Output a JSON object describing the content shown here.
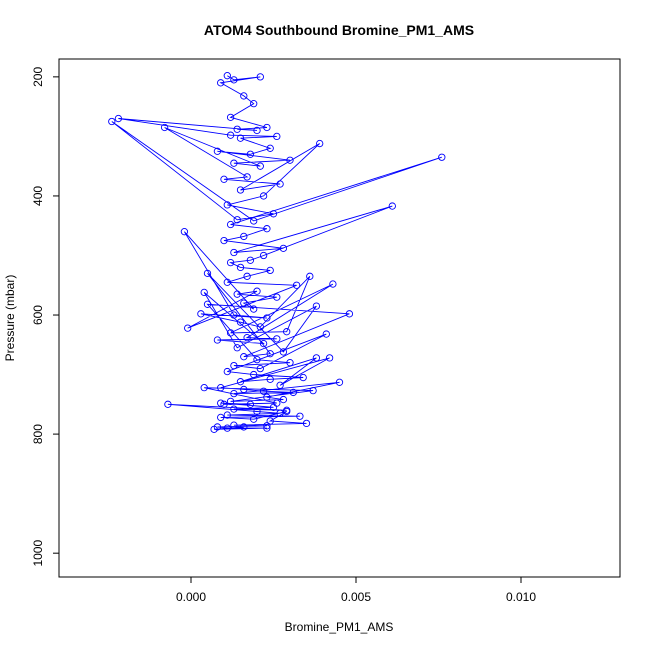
{
  "chart_data": {
    "type": "line",
    "title": "ATOM4 Southbound Bromine_PM1_AMS",
    "xlabel": "Bromine_PM1_AMS",
    "ylabel": "Pressure (mbar)",
    "xlim": [
      -0.004,
      0.013
    ],
    "ylim": [
      1040,
      170
    ],
    "y_reversed": true,
    "x_ticks": [
      "0.000",
      "0.005",
      "0.010"
    ],
    "x_tick_values": [
      0.0,
      0.005,
      0.01
    ],
    "y_ticks": [
      "200",
      "400",
      "600",
      "800",
      "1000"
    ],
    "y_tick_values": [
      200,
      400,
      600,
      800,
      1000
    ],
    "grid": false,
    "legend": "none",
    "series_color": "#0000ff",
    "marker": "open-circle",
    "series": [
      {
        "x": [
          0.0011,
          0.0013,
          0.0021,
          0.0009,
          0.0016,
          0.0019,
          0.0012,
          0.0023,
          0.0014,
          0.002,
          -0.0022,
          0.0012,
          0.0026,
          0.0015,
          0.0024,
          0.0018,
          0.0008,
          0.003,
          0.0013,
          0.0021,
          -0.0008,
          0.0017,
          0.001,
          0.0027,
          0.0015,
          0.0039,
          0.0022,
          0.0011,
          0.0025,
          0.0014,
          -0.0024,
          0.0019,
          0.0076,
          0.0012,
          0.0023,
          0.0016,
          0.001,
          0.0028,
          0.0013,
          0.0061,
          0.0022,
          0.0018,
          0.0012,
          0.0015,
          0.0024,
          0.0017,
          0.0011,
          0.0032,
          -0.0001,
          0.002,
          0.0014,
          0.0026,
          0.0016,
          0.0019,
          -0.0002,
          0.0013,
          0.0023,
          0.0003,
          0.0015,
          0.0021,
          0.0036,
          0.0029,
          0.0012,
          0.0043,
          0.0017,
          0.0026,
          0.0008,
          0.0022,
          0.0004,
          0.0014,
          0.0038,
          0.0028,
          0.0005,
          0.0024,
          0.0016,
          0.0048,
          0.0005,
          0.002,
          0.003,
          0.0013,
          0.0021,
          0.0041,
          0.0011,
          0.0019,
          0.0034,
          0.0024,
          0.0015,
          0.0038,
          0.0027,
          0.0042,
          0.0009,
          0.0016,
          0.0022,
          0.0031,
          0.0013,
          0.0045,
          0.0023,
          0.0028,
          0.0012,
          0.0037,
          0.0004,
          0.0026,
          0.001,
          0.0018,
          0.0009,
          0.0025,
          0.0013,
          0.0029,
          -0.0007,
          0.002,
          0.0027,
          0.0011,
          0.0033,
          0.0009,
          0.0019,
          0.0029,
          0.0024,
          0.0035,
          0.0013,
          0.0023,
          0.0008,
          0.0011,
          0.0023,
          0.0007,
          0.0016
        ],
        "y": [
          198,
          205,
          200,
          210,
          232,
          245,
          268,
          285,
          288,
          290,
          270,
          298,
          300,
          303,
          320,
          330,
          325,
          340,
          345,
          350,
          285,
          368,
          372,
          380,
          390,
          312,
          400,
          415,
          430,
          440,
          275,
          442,
          335,
          448,
          455,
          468,
          475,
          488,
          495,
          417,
          500,
          508,
          512,
          520,
          525,
          535,
          545,
          550,
          622,
          560,
          565,
          570,
          580,
          590,
          460,
          600,
          605,
          598,
          612,
          620,
          535,
          628,
          630,
          548,
          638,
          640,
          642,
          648,
          562,
          655,
          585,
          662,
          530,
          665,
          670,
          598,
          582,
          675,
          680,
          685,
          690,
          632,
          695,
          700,
          705,
          708,
          712,
          672,
          718,
          672,
          722,
          725,
          728,
          730,
          732,
          713,
          738,
          742,
          745,
          727,
          722,
          748,
          750,
          750,
          748,
          755,
          758,
          760,
          750,
          762,
          765,
          768,
          770,
          772,
          775,
          762,
          778,
          782,
          785,
          786,
          788,
          790,
          790,
          792,
          788
        ]
      }
    ]
  }
}
